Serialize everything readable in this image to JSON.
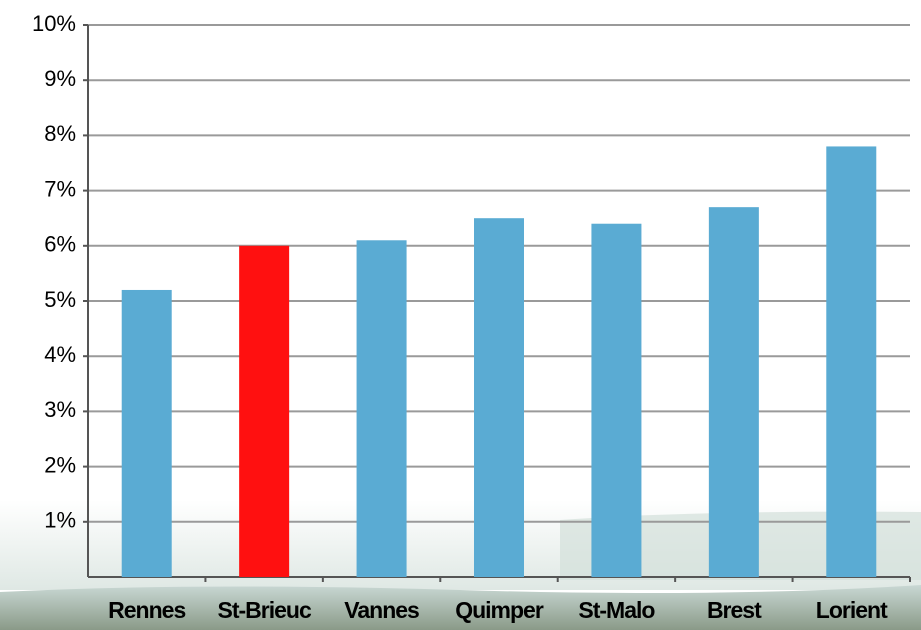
{
  "chart_data": {
    "type": "bar",
    "categories": [
      "Rennes",
      "St-Brieuc",
      "Vannes",
      "Quimper",
      "St-Malo",
      "Brest",
      "Lorient"
    ],
    "values": [
      5.2,
      6.0,
      6.1,
      6.5,
      6.4,
      6.7,
      7.8
    ],
    "colors": [
      "#5aabd3",
      "#ff1010",
      "#5aabd3",
      "#5aabd3",
      "#5aabd3",
      "#5aabd3",
      "#5aabd3"
    ],
    "ylim": [
      0,
      10
    ],
    "yticks": [
      {
        "value": 1,
        "label": "1%"
      },
      {
        "value": 2,
        "label": "2%"
      },
      {
        "value": 3,
        "label": "3%"
      },
      {
        "value": 4,
        "label": "4%"
      },
      {
        "value": 5,
        "label": "5%"
      },
      {
        "value": 6,
        "label": "6%"
      },
      {
        "value": 7,
        "label": "7%"
      },
      {
        "value": 8,
        "label": "8%"
      },
      {
        "value": 9,
        "label": "9%"
      },
      {
        "value": 10,
        "label": "10%"
      }
    ],
    "grid": true
  }
}
